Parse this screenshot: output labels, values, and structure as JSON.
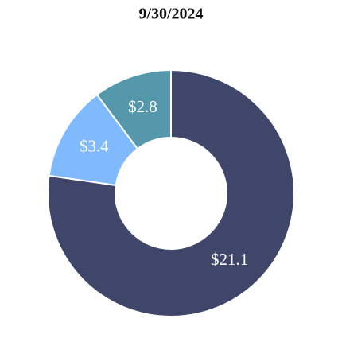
{
  "chart_data": {
    "type": "donut",
    "title": "9/30/2024",
    "values": [
      21.1,
      3.4,
      2.8
    ],
    "value_labels": [
      "$21.1",
      "$3.4",
      "$2.8"
    ],
    "colors": [
      "#3f4669",
      "#80bafc",
      "#5598ac"
    ]
  }
}
